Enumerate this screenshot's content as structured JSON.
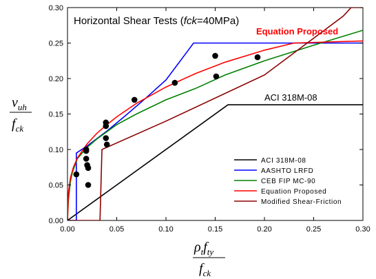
{
  "chart_data": {
    "type": "line",
    "title": "Horizontal Shear Tests (",
    "title_var": "fck",
    "title_suffix": "=40MPa)",
    "ylabel": {
      "numerator": "v",
      "numerator_sub": "uh",
      "denominator": "f",
      "denominator_sub": "ck"
    },
    "xlabel": {
      "numerator_a": "ρ",
      "numerator_a_sub": "t",
      "numerator_b": "f",
      "numerator_b_sub": "ty",
      "denominator": "f",
      "denominator_sub": "ck"
    },
    "xlim": [
      0,
      0.3
    ],
    "ylim": [
      0,
      0.3
    ],
    "x_ticks": [
      "0.00",
      "0.05",
      "0.10",
      "0.15",
      "0.20",
      "0.25",
      "0.30"
    ],
    "y_ticks": [
      "0.00",
      "0.05",
      "0.10",
      "0.15",
      "0.20",
      "0.25",
      "0.30"
    ],
    "x_tick_values": [
      0,
      0.05,
      0.1,
      0.15,
      0.2,
      0.25,
      0.3
    ],
    "y_tick_values": [
      0,
      0.05,
      0.1,
      0.15,
      0.2,
      0.25,
      0.3
    ],
    "legend_position": "lower-right",
    "series": [
      {
        "name": "ACI 318M-08",
        "color": "#000000",
        "points": [
          [
            0.0,
            0.0
          ],
          [
            0.163,
            0.163
          ],
          [
            0.3,
            0.163
          ]
        ]
      },
      {
        "name": "AASHTO LRFD",
        "color": "#0000ff",
        "points": [
          [
            0.0,
            0.0
          ],
          [
            0.009,
            0.0
          ],
          [
            0.009,
            0.095
          ],
          [
            0.02,
            0.105
          ],
          [
            0.04,
            0.126
          ],
          [
            0.06,
            0.149
          ],
          [
            0.08,
            0.173
          ],
          [
            0.1,
            0.198
          ],
          [
            0.12,
            0.235
          ],
          [
            0.128,
            0.25
          ],
          [
            0.3,
            0.25
          ]
        ]
      },
      {
        "name": "CEB FIP MC-90",
        "color": "#008000",
        "points": [
          [
            0.0,
            0.0
          ],
          [
            0.001,
            0.03
          ],
          [
            0.003,
            0.055
          ],
          [
            0.005,
            0.068
          ],
          [
            0.01,
            0.087
          ],
          [
            0.02,
            0.103
          ],
          [
            0.03,
            0.115
          ],
          [
            0.04,
            0.125
          ],
          [
            0.05,
            0.135
          ],
          [
            0.07,
            0.15
          ],
          [
            0.1,
            0.17
          ],
          [
            0.13,
            0.186
          ],
          [
            0.16,
            0.205
          ],
          [
            0.2,
            0.225
          ],
          [
            0.25,
            0.247
          ],
          [
            0.3,
            0.268
          ]
        ]
      },
      {
        "name": "Equation Proposed",
        "color": "#ff0000",
        "points": [
          [
            0.0,
            0.0
          ],
          [
            0.0005,
            0.02
          ],
          [
            0.001,
            0.04
          ],
          [
            0.003,
            0.06
          ],
          [
            0.006,
            0.075
          ],
          [
            0.01,
            0.088
          ],
          [
            0.02,
            0.108
          ],
          [
            0.03,
            0.123
          ],
          [
            0.04,
            0.135
          ],
          [
            0.05,
            0.146
          ],
          [
            0.07,
            0.165
          ],
          [
            0.1,
            0.188
          ],
          [
            0.13,
            0.207
          ],
          [
            0.16,
            0.223
          ],
          [
            0.2,
            0.24
          ],
          [
            0.23,
            0.25
          ],
          [
            0.3,
            0.253
          ]
        ]
      },
      {
        "name": "Modified Shear-Friction",
        "color": "#8b0000",
        "points": [
          [
            0.0,
            0.0
          ],
          [
            0.033,
            0.0
          ],
          [
            0.035,
            0.1
          ],
          [
            0.1,
            0.14
          ],
          [
            0.2,
            0.205
          ],
          [
            0.28,
            0.288
          ],
          [
            0.288,
            0.3
          ],
          [
            0.3,
            0.3
          ]
        ]
      }
    ],
    "test_data": [
      [
        0.009,
        0.065
      ],
      [
        0.019,
        0.1
      ],
      [
        0.019,
        0.098
      ],
      [
        0.019,
        0.087
      ],
      [
        0.02,
        0.078
      ],
      [
        0.021,
        0.074
      ],
      [
        0.021,
        0.05
      ],
      [
        0.039,
        0.138
      ],
      [
        0.039,
        0.133
      ],
      [
        0.039,
        0.116
      ],
      [
        0.04,
        0.107
      ],
      [
        0.068,
        0.17
      ],
      [
        0.109,
        0.194
      ],
      [
        0.15,
        0.232
      ],
      [
        0.151,
        0.203
      ],
      [
        0.193,
        0.23
      ]
    ],
    "annotations": [
      {
        "text": "Equation Proposed",
        "x": 0.176,
        "y": 0.261,
        "color": "#ff0000"
      },
      {
        "text": "ACI 318M-08",
        "x": 0.215,
        "y": 0.173,
        "color": "#000000"
      }
    ]
  }
}
